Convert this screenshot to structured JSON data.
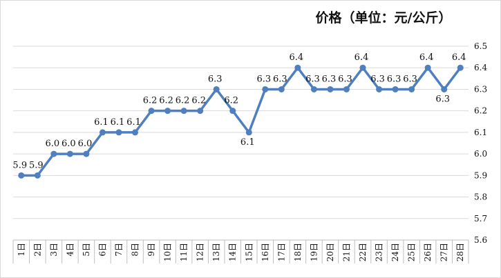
{
  "chart_data": {
    "type": "line",
    "title": "价格（单位：元/公斤）",
    "xlabel": "",
    "ylabel": "",
    "ylim": [
      5.6,
      6.5
    ],
    "y_ticks": [
      "5.6",
      "5.7",
      "5.8",
      "5.9",
      "6.0",
      "6.1",
      "6.2",
      "6.3",
      "6.4",
      "6.5"
    ],
    "y_axis_side": "right",
    "grid": true,
    "legend": "none",
    "categories": [
      "1日",
      "2日",
      "3日",
      "4日",
      "5日",
      "6日",
      "7日",
      "8日",
      "9日",
      "10日",
      "11日",
      "12日",
      "13日",
      "14日",
      "15日",
      "16日",
      "17日",
      "18日",
      "19日",
      "20日",
      "21日",
      "22日",
      "23日",
      "24日",
      "25日",
      "26日",
      "27日",
      "28日"
    ],
    "series": [
      {
        "values": [
          5.9,
          5.9,
          6.0,
          6.0,
          6.0,
          6.1,
          6.1,
          6.1,
          6.2,
          6.2,
          6.2,
          6.2,
          6.3,
          6.2,
          6.1,
          6.3,
          6.3,
          6.4,
          6.3,
          6.3,
          6.3,
          6.4,
          6.3,
          6.3,
          6.3,
          6.4,
          6.3,
          6.4
        ],
        "color": "#4f7fbf"
      }
    ],
    "data_labels": [
      "5.9",
      "5.9",
      "6.0",
      "6.0",
      "6.0",
      "6.1",
      "6.1",
      "6.1",
      "6.2",
      "6.2",
      "6.2",
      "6.2",
      "6.3",
      "6.2",
      "6.1",
      "6.3",
      "6.3",
      "6.4",
      "6.3",
      "6.3",
      "6.3",
      "6.4",
      "6.3",
      "6.3",
      "6.3",
      "6.4",
      "6.3",
      "6.4"
    ]
  }
}
